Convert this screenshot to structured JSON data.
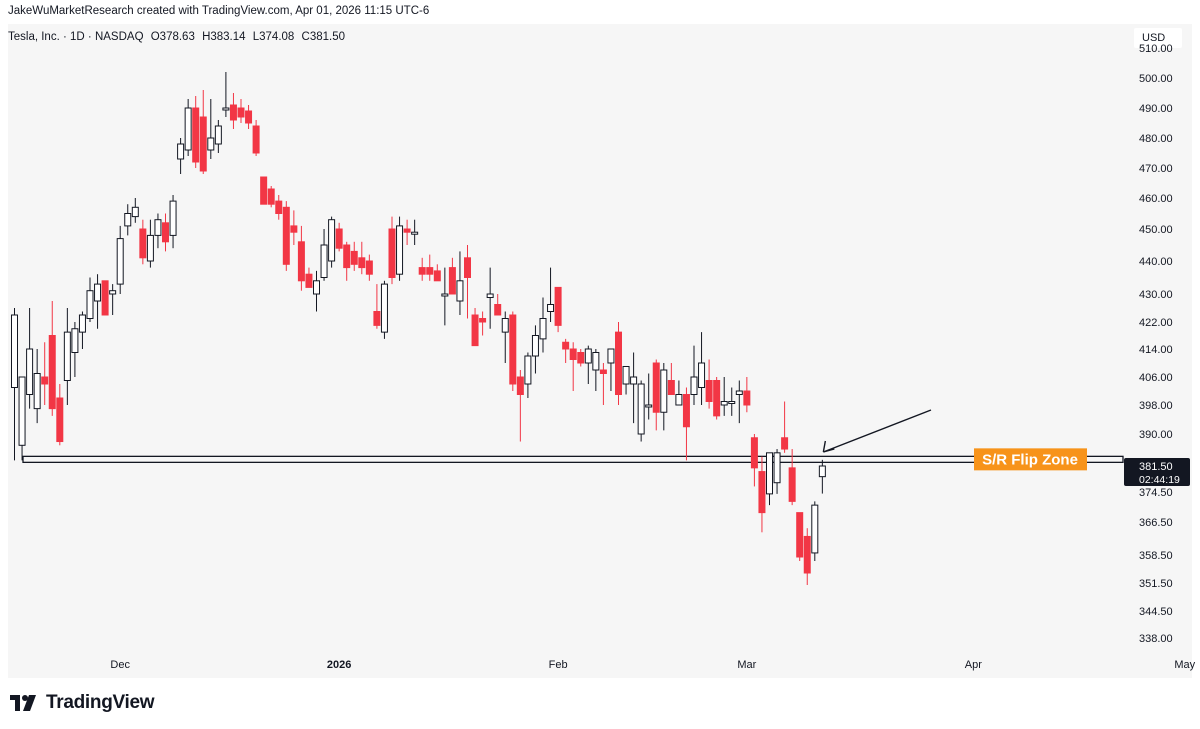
{
  "header": {
    "attribution": "JakeWuMarketResearch created with TradingView.com, Apr 01, 2026 11:15 UTC-6"
  },
  "symbol": {
    "name": "Tesla, Inc.",
    "interval": "1D",
    "exchange": "NASDAQ",
    "open": "O378.63",
    "high": "H383.14",
    "low": "L374.08",
    "close": "C381.50"
  },
  "currency": "USD",
  "footer": {
    "brand": "TradingView"
  },
  "colors": {
    "up": "#ffffff",
    "up_border": "#131722",
    "down": "#f23645",
    "line": "#131722",
    "zone_label_bg": "#f7931a"
  },
  "chart_data": {
    "type": "candlestick",
    "title": "Tesla, Inc. · 1D · NASDAQ",
    "y_ticks": [
      338.0,
      344.5,
      351.5,
      358.5,
      366.5,
      374.5,
      390.0,
      398.0,
      406.0,
      414.0,
      422.0,
      430.0,
      440.0,
      450.0,
      460.0,
      470.0,
      480.0,
      490.0,
      500.0
    ],
    "y_tick_labels": [
      "338.00",
      "344.50",
      "351.50",
      "358.50",
      "366.50",
      "374.50",
      "390.00",
      "398.00",
      "406.00",
      "414.00",
      "422.00",
      "430.00",
      "440.00",
      "450.00",
      "460.00",
      "470.00",
      "480.00",
      "490.00",
      "500.00"
    ],
    "x_labels": [
      {
        "label": "Dec",
        "bar": 14
      },
      {
        "label": "2026",
        "bar": 43,
        "bold": true
      },
      {
        "label": "Feb",
        "bar": 72
      },
      {
        "label": "Mar",
        "bar": 97
      },
      {
        "label": "Apr",
        "bar": 127
      },
      {
        "label": "May",
        "bar": 155
      }
    ],
    "last_price": "381.50",
    "countdown": "02:44:19",
    "annotations": {
      "zone_label": "S/R Flip Zone",
      "zone_price": 383,
      "arrow": "pointing to last candle"
    },
    "candles": [
      {
        "o": 403,
        "h": 426,
        "l": 383,
        "c": 424
      },
      {
        "o": 387,
        "h": 406,
        "l": 383,
        "c": 406
      },
      {
        "o": 401,
        "h": 426,
        "l": 397,
        "c": 414
      },
      {
        "o": 397,
        "h": 414,
        "l": 393,
        "c": 407
      },
      {
        "o": 406,
        "h": 416,
        "l": 398,
        "c": 404
      },
      {
        "o": 418,
        "h": 428,
        "l": 395,
        "c": 397
      },
      {
        "o": 400,
        "h": 404,
        "l": 387,
        "c": 388
      },
      {
        "o": 405,
        "h": 426,
        "l": 398,
        "c": 419
      },
      {
        "o": 413,
        "h": 422,
        "l": 406,
        "c": 420
      },
      {
        "o": 419,
        "h": 425,
        "l": 414,
        "c": 424
      },
      {
        "o": 423,
        "h": 435,
        "l": 422,
        "c": 431
      },
      {
        "o": 428,
        "h": 436,
        "l": 420,
        "c": 433
      },
      {
        "o": 434,
        "h": 434,
        "l": 424,
        "c": 424
      },
      {
        "o": 430,
        "h": 433,
        "l": 424,
        "c": 431
      },
      {
        "o": 433,
        "h": 451,
        "l": 430,
        "c": 447
      },
      {
        "o": 451,
        "h": 458,
        "l": 448,
        "c": 455
      },
      {
        "o": 454,
        "h": 460,
        "l": 452,
        "c": 457
      },
      {
        "o": 450,
        "h": 453,
        "l": 439,
        "c": 441
      },
      {
        "o": 440,
        "h": 453,
        "l": 438,
        "c": 448
      },
      {
        "o": 448,
        "h": 455,
        "l": 444,
        "c": 453
      },
      {
        "o": 452,
        "h": 455,
        "l": 443,
        "c": 446
      },
      {
        "o": 448,
        "h": 461,
        "l": 444,
        "c": 459
      },
      {
        "o": 473,
        "h": 480,
        "l": 468,
        "c": 478
      },
      {
        "o": 476,
        "h": 493,
        "l": 474,
        "c": 490
      },
      {
        "o": 490,
        "h": 494,
        "l": 470,
        "c": 472
      },
      {
        "o": 487,
        "h": 496,
        "l": 468,
        "c": 469
      },
      {
        "o": 476,
        "h": 493,
        "l": 473,
        "c": 480
      },
      {
        "o": 478,
        "h": 486,
        "l": 475,
        "c": 484
      },
      {
        "o": 490,
        "h": 502,
        "l": 487,
        "c": 490
      },
      {
        "o": 491,
        "h": 495,
        "l": 483,
        "c": 486
      },
      {
        "o": 490,
        "h": 493,
        "l": 485,
        "c": 487
      },
      {
        "o": 489,
        "h": 491,
        "l": 483,
        "c": 485
      },
      {
        "o": 484,
        "h": 486,
        "l": 474,
        "c": 475
      },
      {
        "o": 467,
        "h": 467,
        "l": 458,
        "c": 458
      },
      {
        "o": 463,
        "h": 464,
        "l": 457,
        "c": 458
      },
      {
        "o": 459,
        "h": 461,
        "l": 453,
        "c": 455
      },
      {
        "o": 457,
        "h": 459,
        "l": 437,
        "c": 439
      },
      {
        "o": 451,
        "h": 456,
        "l": 445,
        "c": 449
      },
      {
        "o": 446,
        "h": 451,
        "l": 431,
        "c": 434
      },
      {
        "o": 436,
        "h": 438,
        "l": 432,
        "c": 432
      },
      {
        "o": 430,
        "h": 437,
        "l": 425,
        "c": 434
      },
      {
        "o": 435,
        "h": 450,
        "l": 434,
        "c": 445
      },
      {
        "o": 440,
        "h": 454,
        "l": 438,
        "c": 453
      },
      {
        "o": 450,
        "h": 452,
        "l": 443,
        "c": 444
      },
      {
        "o": 445,
        "h": 446,
        "l": 434,
        "c": 438
      },
      {
        "o": 443,
        "h": 446,
        "l": 437,
        "c": 439
      },
      {
        "o": 441,
        "h": 446,
        "l": 436,
        "c": 438
      },
      {
        "o": 440,
        "h": 442,
        "l": 434,
        "c": 436
      },
      {
        "o": 425,
        "h": 433,
        "l": 420,
        "c": 421
      },
      {
        "o": 419,
        "h": 434,
        "l": 417,
        "c": 433
      },
      {
        "o": 450,
        "h": 454,
        "l": 433,
        "c": 435
      },
      {
        "o": 436,
        "h": 454,
        "l": 434,
        "c": 451
      },
      {
        "o": 450,
        "h": 453,
        "l": 445,
        "c": 449
      },
      {
        "o": 449,
        "h": 453,
        "l": 445,
        "c": 449
      },
      {
        "o": 438,
        "h": 441,
        "l": 434,
        "c": 436
      },
      {
        "o": 438,
        "h": 442,
        "l": 434,
        "c": 436
      },
      {
        "o": 437,
        "h": 439,
        "l": 434,
        "c": 434
      },
      {
        "o": 430,
        "h": 438,
        "l": 421,
        "c": 430
      },
      {
        "o": 438,
        "h": 441,
        "l": 430,
        "c": 430
      },
      {
        "o": 428,
        "h": 443,
        "l": 424,
        "c": 434
      },
      {
        "o": 441,
        "h": 445,
        "l": 423,
        "c": 435
      },
      {
        "o": 424,
        "h": 426,
        "l": 415,
        "c": 415
      },
      {
        "o": 423,
        "h": 425,
        "l": 418,
        "c": 422
      },
      {
        "o": 429,
        "h": 438,
        "l": 420,
        "c": 430
      },
      {
        "o": 427,
        "h": 430,
        "l": 424,
        "c": 424
      },
      {
        "o": 419,
        "h": 425,
        "l": 410,
        "c": 423
      },
      {
        "o": 424,
        "h": 425,
        "l": 402,
        "c": 404
      },
      {
        "o": 406,
        "h": 408,
        "l": 388,
        "c": 401
      },
      {
        "o": 404,
        "h": 413,
        "l": 400,
        "c": 412
      },
      {
        "o": 412,
        "h": 421,
        "l": 407,
        "c": 418
      },
      {
        "o": 417,
        "h": 429,
        "l": 413,
        "c": 423
      },
      {
        "o": 425,
        "h": 438,
        "l": 422,
        "c": 427
      },
      {
        "o": 432,
        "h": 432,
        "l": 419,
        "c": 421
      },
      {
        "o": 416,
        "h": 417,
        "l": 410,
        "c": 414
      },
      {
        "o": 414,
        "h": 416,
        "l": 402,
        "c": 411
      },
      {
        "o": 413,
        "h": 414,
        "l": 409,
        "c": 410
      },
      {
        "o": 410,
        "h": 415,
        "l": 404,
        "c": 414
      },
      {
        "o": 408,
        "h": 414,
        "l": 402,
        "c": 413
      },
      {
        "o": 408,
        "h": 410,
        "l": 398,
        "c": 407
      },
      {
        "o": 410,
        "h": 413,
        "l": 402,
        "c": 414
      },
      {
        "o": 419,
        "h": 422,
        "l": 398,
        "c": 401
      },
      {
        "o": 404,
        "h": 409,
        "l": 401,
        "c": 409
      },
      {
        "o": 404,
        "h": 413,
        "l": 393,
        "c": 406
      },
      {
        "o": 390,
        "h": 405,
        "l": 388,
        "c": 404
      },
      {
        "o": 398,
        "h": 407,
        "l": 394,
        "c": 398
      },
      {
        "o": 410,
        "h": 411,
        "l": 391,
        "c": 396
      },
      {
        "o": 396,
        "h": 410,
        "l": 391,
        "c": 408
      },
      {
        "o": 405,
        "h": 410,
        "l": 402,
        "c": 401
      },
      {
        "o": 398,
        "h": 405,
        "l": 398,
        "c": 401
      },
      {
        "o": 401,
        "h": 403,
        "l": 383,
        "c": 392
      },
      {
        "o": 401,
        "h": 415,
        "l": 398,
        "c": 406
      },
      {
        "o": 403,
        "h": 419,
        "l": 398,
        "c": 410
      },
      {
        "o": 405,
        "h": 411,
        "l": 397,
        "c": 399
      },
      {
        "o": 405,
        "h": 406,
        "l": 394,
        "c": 395
      },
      {
        "o": 398,
        "h": 406,
        "l": 395,
        "c": 399
      },
      {
        "o": 399,
        "h": 403,
        "l": 395,
        "c": 399
      },
      {
        "o": 401,
        "h": 405,
        "l": 393,
        "c": 402
      },
      {
        "o": 402,
        "h": 406,
        "l": 396,
        "c": 398
      },
      {
        "o": 389,
        "h": 390,
        "l": 376,
        "c": 381
      },
      {
        "o": 380,
        "h": 384,
        "l": 364,
        "c": 369
      },
      {
        "o": 374,
        "h": 385,
        "l": 371,
        "c": 385
      },
      {
        "o": 377,
        "h": 386,
        "l": 374,
        "c": 385
      },
      {
        "o": 389,
        "h": 399,
        "l": 385,
        "c": 386
      },
      {
        "o": 381,
        "h": 386,
        "l": 371,
        "c": 372
      },
      {
        "o": 369,
        "h": 369,
        "l": 357,
        "c": 358
      },
      {
        "o": 363,
        "h": 365,
        "l": 351,
        "c": 354
      },
      {
        "o": 359,
        "h": 372,
        "l": 357,
        "c": 371
      },
      {
        "o": 378.63,
        "h": 383.14,
        "l": 374.08,
        "c": 381.5
      }
    ]
  }
}
